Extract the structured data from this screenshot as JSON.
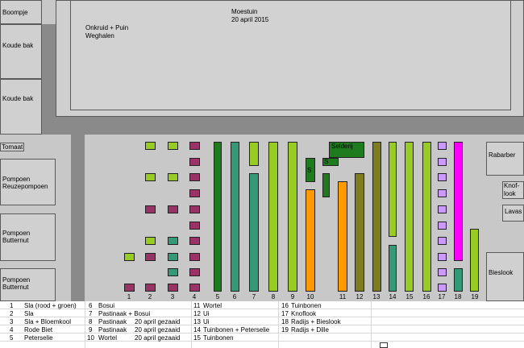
{
  "garden": {
    "title": "Moestuin",
    "date": "20 april 2015",
    "weed_note_line1": "Onkruid + Puin",
    "weed_note_line2": "Weghalen",
    "left": {
      "boompje": "Boompje",
      "koude_bak_1": "Koude bak",
      "koude_bak_2": "Koude bak",
      "tomaat": "Tomaat",
      "pompoen1_l1": "Pompoen",
      "pompoen1_l2": "Reuzepompoen",
      "pompoen2_l1": "Pompoen",
      "pompoen2_l2": "Butternut",
      "pompoen3_l1": "Pompoen",
      "pompoen3_l2": "Butternut"
    },
    "right": {
      "rabarber": "Rabarber",
      "knoflook_l1": "Knof-",
      "knoflook_l2": "look",
      "lavas": "Lavas",
      "bieslook": "Bieslook"
    },
    "bed_labels": {
      "selderij": "Selderij",
      "s1": "S",
      "s2": "S"
    },
    "colors": {
      "lime": "#99cc22",
      "maroon": "#993366",
      "teal": "#339977",
      "dark_green": "#1e7b1e",
      "orange": "#ff9900",
      "olive": "#7d7d1e",
      "lavender": "#cc99ff",
      "magenta": "#ff00ff"
    },
    "column_numbers": [
      "1",
      "2",
      "3",
      "4",
      "5",
      "6",
      "7",
      "8",
      "9",
      "10",
      "11",
      "12",
      "13",
      "14",
      "15",
      "16",
      "17",
      "18",
      "19"
    ]
  },
  "legend": [
    [
      {
        "n": "1",
        "t": "Sla (rood + groen)"
      },
      {
        "n": "2",
        "t": "Sla"
      },
      {
        "n": "3",
        "t": "Sla + Bloemkool"
      },
      {
        "n": "4",
        "t": "Rode Biet"
      },
      {
        "n": "5",
        "t": "Peterselie"
      }
    ],
    [
      {
        "n": "6",
        "t": "Bosui"
      },
      {
        "n": "7",
        "t": "Pastinaak + Bosui"
      },
      {
        "n": "8",
        "t": "Pastinaak",
        "x": "20 april gezaaid"
      },
      {
        "n": "9",
        "t": "Pastinaak",
        "x": "20 april gezaaid"
      },
      {
        "n": "10",
        "t": "Wortel",
        "x": "20 april gezaaid"
      }
    ],
    [
      {
        "n": "11",
        "t": "Wortel"
      },
      {
        "n": "12",
        "t": "Ui"
      },
      {
        "n": "13",
        "t": "Ui"
      },
      {
        "n": "14",
        "t": "Tuinbonen + Peterselie"
      },
      {
        "n": "15",
        "t": "Tuinbonen"
      }
    ],
    [
      {
        "n": "16",
        "t": "Tuinbonen"
      },
      {
        "n": "17",
        "t": "Knoflook"
      },
      {
        "n": "18",
        "t": "Radijs + Bieslook"
      },
      {
        "n": "19",
        "t": "Radijs + Dille"
      }
    ]
  ]
}
